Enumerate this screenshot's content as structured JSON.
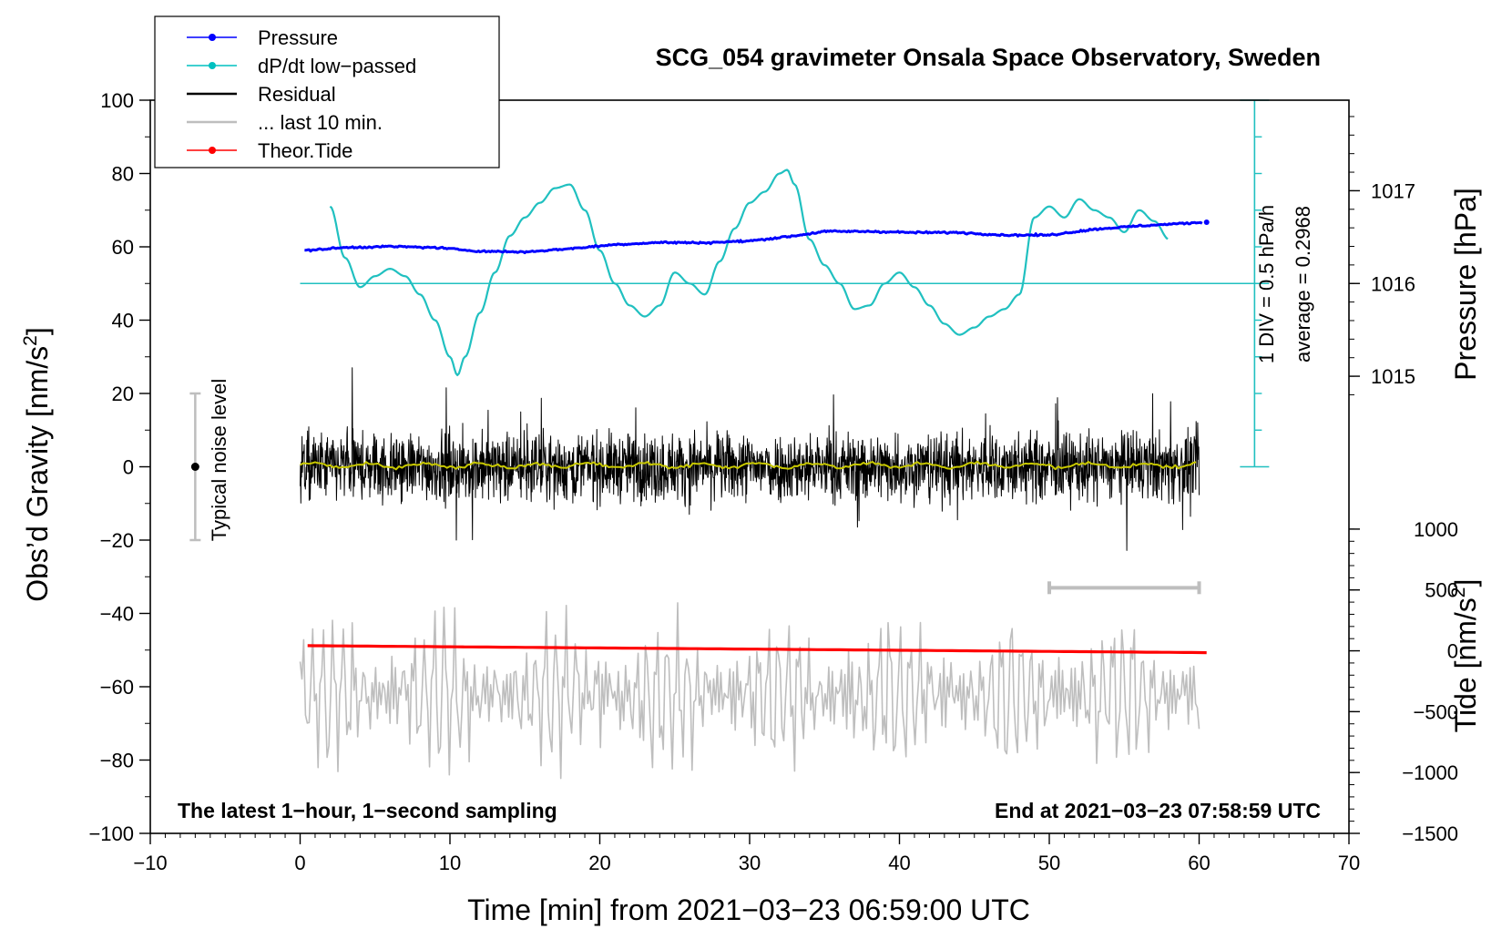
{
  "chart_data": {
    "type": "line",
    "title": "SCG_054 gravimeter Onsala Space Observatory, Sweden",
    "xlabel": "Time [min] from 2021−03−23 06:59:00 UTC",
    "ylabel_left": "Obs’d Gravity [nm/s",
    "ylabel_left_sup": "2",
    "ylabel_left_end": "]",
    "ylabel_right_pressure": "Pressure [hPa]",
    "ylabel_right_tide": "Tide [nm/s",
    "ylabel_right_tide_sup": "2",
    "ylabel_right_tide_end": "]",
    "xlim": [
      -10,
      70
    ],
    "ylim": [
      -100,
      100
    ],
    "x_ticks": [
      "−10",
      "0",
      "10",
      "20",
      "30",
      "40",
      "50",
      "60",
      "70"
    ],
    "y_ticks": [
      "−100",
      "−80",
      "−60",
      "−40",
      "−20",
      "0",
      "20",
      "40",
      "60",
      "80",
      "100"
    ],
    "pressure_ticks": [
      "1015",
      "1016",
      "1017"
    ],
    "tide_ticks": [
      "−1500",
      "−1000",
      "−500",
      "0",
      "500",
      "1000"
    ],
    "legend": [
      {
        "label": "Pressure",
        "color": "#0000ff",
        "marker": true
      },
      {
        "label": "dP/dt low−passed",
        "color": "#00c0c0",
        "marker": true
      },
      {
        "label": "Residual",
        "color": "#000000",
        "marker": false
      },
      {
        "label": "... last 10 min.",
        "color": "#bebebe",
        "marker": false
      },
      {
        "label": "Theor.Tide",
        "color": "#ff0000",
        "marker": true
      }
    ],
    "annotations": {
      "noise_label": "Typical noise level",
      "noise_range": [
        -20,
        20
      ],
      "noise_x": -7,
      "dpdt_scale": "1 DIV = 0.5 hPa/h",
      "dpdt_average": "average = 0.2968",
      "bottom_left": "The latest 1−hour, 1−second sampling",
      "bottom_right": "End at 2021−03−23 07:58:59 UTC",
      "last10_range": [
        50,
        60
      ]
    },
    "series": [
      {
        "name": "Pressure",
        "color": "#0000ff",
        "units": "gravity-axis equivalent",
        "x": [
          0.3,
          3,
          6,
          9,
          12,
          15,
          18,
          21,
          24,
          27,
          30,
          33,
          35,
          38,
          41,
          44,
          47,
          50,
          53,
          56,
          60.3
        ],
        "values": [
          59,
          59.8,
          60.1,
          59.8,
          58.8,
          58.6,
          59.5,
          60.6,
          61.2,
          61.1,
          61.6,
          63,
          64.2,
          64.2,
          63.9,
          63.9,
          63.2,
          63.2,
          64.8,
          65.7,
          66.7
        ]
      },
      {
        "name": "dP/dt low-passed",
        "color": "#00c0c0",
        "units": "gravity-axis equivalent",
        "x": [
          2,
          3,
          4,
          5,
          6,
          7,
          8,
          9,
          10,
          10.5,
          11,
          12,
          13,
          14,
          15,
          16,
          17,
          18,
          19,
          20,
          21,
          22,
          23,
          24,
          25,
          26,
          27,
          28,
          29,
          30,
          31,
          32,
          32.5,
          33,
          34,
          35,
          36,
          37,
          38,
          39,
          40,
          41,
          42,
          43,
          44,
          45,
          46,
          47,
          48,
          49,
          50,
          51,
          52,
          53,
          54,
          55,
          56,
          57,
          58
        ],
        "values": [
          71,
          57,
          49,
          52,
          54,
          52,
          47,
          40,
          30,
          25,
          30,
          42,
          53,
          63,
          68,
          72,
          76,
          77,
          70,
          59,
          50,
          44,
          41,
          44,
          53,
          50,
          47,
          56,
          65,
          72,
          75,
          80,
          81,
          77,
          62,
          55,
          50,
          43,
          44,
          50,
          53,
          49,
          44,
          39,
          36,
          38,
          41,
          43,
          47,
          68,
          71,
          68,
          73,
          70,
          68,
          64,
          70,
          67,
          62
        ]
      },
      {
        "name": "Residual",
        "color": "#000000",
        "x_range": [
          0,
          60
        ],
        "amplitude": "about ±20"
      },
      {
        "name": "Residual smoothed",
        "color": "#c8c800",
        "x_range": [
          0,
          60
        ],
        "values_near": 0
      },
      {
        "name": "... last 10 min.",
        "color": "#bebebe",
        "x_range": [
          0,
          60
        ],
        "range": [
          -85,
          -36
        ]
      },
      {
        "name": "Theor.Tide",
        "color": "#ff0000",
        "x": [
          0.5,
          60.5
        ],
        "values": [
          -48.8,
          -50.7
        ]
      }
    ],
    "grid": false,
    "legend_position": "top-left"
  }
}
